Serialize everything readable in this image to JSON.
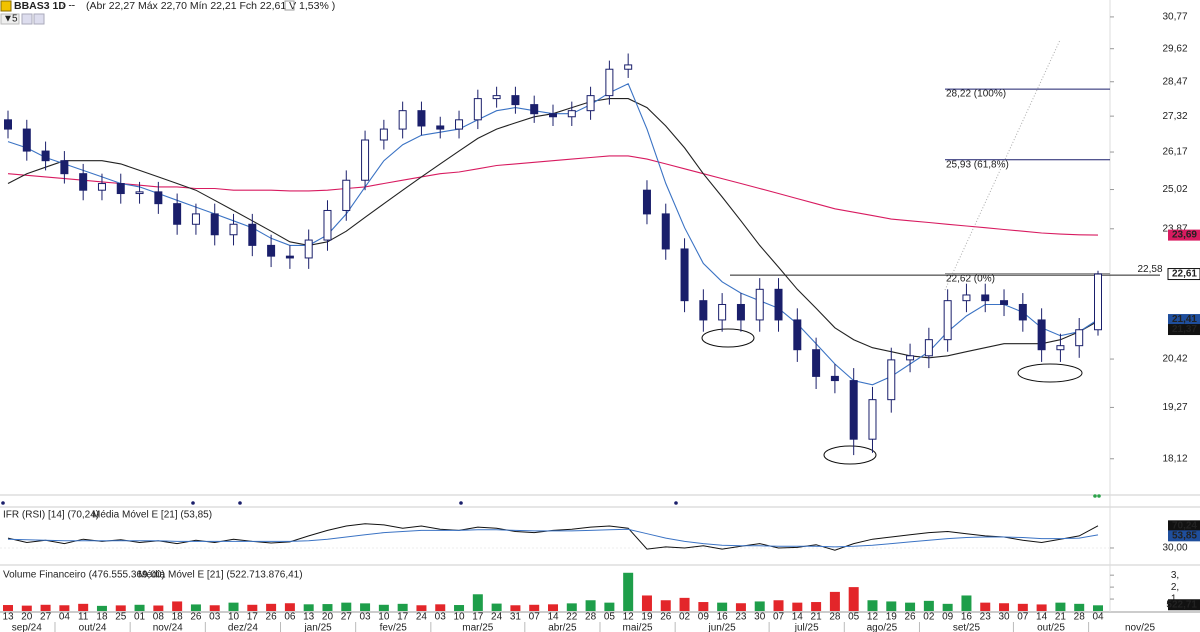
{
  "header": {
    "title": "BBAS3 1D",
    "quote": "(Abr 22,27 Máx 22,70 Mín 22,21 Fch 22,61 V 1,53% )",
    "interval": "5"
  },
  "chart_data": [
    {
      "type": "candlestick",
      "x": [
        "13",
        "20",
        "27",
        "04",
        "11",
        "18",
        "25",
        "01",
        "08",
        "18",
        "26",
        "03",
        "10",
        "17",
        "26",
        "06",
        "13",
        "20",
        "27",
        "03",
        "10",
        "17",
        "24",
        "03",
        "10",
        "17",
        "24",
        "31",
        "07",
        "14",
        "22",
        "28",
        "05",
        "12",
        "19",
        "26",
        "02",
        "09",
        "16",
        "23",
        "30",
        "07",
        "14",
        "21",
        "28",
        "05",
        "12",
        "19",
        "26",
        "02",
        "09",
        "16",
        "23",
        "30",
        "07",
        "14",
        "21",
        "28",
        "04"
      ],
      "months": [
        "sep/24",
        "out/24",
        "nov/24",
        "dez/24",
        "jan/25",
        "fev/25",
        "mar/25",
        "abr/25",
        "mai/25",
        "jun/25",
        "jul/25",
        "ago/25",
        "set/25",
        "out/25",
        "nov/25"
      ],
      "open": [
        27.2,
        26.9,
        26.2,
        25.9,
        25.5,
        25.0,
        25.2,
        24.9,
        24.95,
        24.6,
        24.0,
        24.3,
        23.7,
        24.0,
        23.4,
        23.1,
        23.05,
        23.55,
        24.4,
        25.3,
        26.55,
        26.9,
        27.5,
        27.0,
        26.9,
        27.2,
        27.9,
        28.0,
        27.7,
        27.4,
        27.3,
        27.5,
        28.0,
        28.9,
        25.0,
        24.3,
        23.3,
        21.9,
        21.4,
        21.8,
        21.4,
        22.2,
        21.4,
        20.65,
        20.0,
        19.9,
        18.55,
        19.45,
        20.4,
        20.5,
        20.9,
        21.9,
        22.05,
        21.9,
        21.8,
        21.4,
        20.65,
        20.75,
        21.15
      ],
      "high": [
        27.5,
        27.2,
        26.5,
        26.2,
        25.8,
        25.5,
        25.5,
        25.25,
        25.25,
        24.9,
        24.6,
        24.6,
        24.3,
        24.3,
        23.7,
        23.4,
        23.85,
        24.7,
        25.6,
        26.85,
        27.2,
        27.8,
        27.8,
        27.3,
        27.5,
        28.2,
        28.3,
        28.3,
        28.0,
        27.7,
        27.8,
        28.3,
        29.2,
        29.45,
        25.3,
        24.6,
        23.6,
        22.2,
        22.1,
        22.1,
        22.5,
        22.5,
        21.7,
        20.95,
        20.3,
        20.2,
        19.75,
        20.7,
        20.8,
        21.2,
        22.2,
        22.35,
        22.35,
        22.2,
        22.1,
        21.7,
        21.05,
        21.45,
        22.7
      ],
      "low": [
        26.6,
        25.9,
        25.6,
        25.2,
        24.7,
        24.7,
        24.6,
        24.6,
        24.3,
        23.7,
        23.7,
        23.4,
        23.4,
        23.1,
        22.8,
        22.75,
        22.75,
        23.25,
        24.1,
        25.0,
        26.25,
        26.6,
        26.7,
        26.6,
        26.6,
        26.9,
        27.6,
        27.4,
        27.1,
        27.0,
        27.0,
        27.2,
        27.7,
        28.6,
        24.0,
        23.0,
        21.6,
        21.1,
        21.1,
        21.1,
        21.1,
        21.1,
        20.35,
        19.7,
        19.6,
        18.2,
        18.25,
        19.15,
        20.1,
        20.2,
        20.6,
        21.6,
        21.6,
        21.5,
        21.1,
        20.35,
        20.35,
        20.45,
        21.0
      ],
      "close": [
        26.9,
        26.2,
        25.9,
        25.5,
        25.0,
        25.2,
        24.9,
        24.95,
        24.6,
        24.0,
        24.3,
        23.7,
        24.0,
        23.4,
        23.1,
        23.05,
        23.55,
        24.4,
        25.3,
        26.55,
        26.9,
        27.5,
        27.0,
        26.9,
        27.2,
        27.9,
        28.0,
        27.7,
        27.4,
        27.3,
        27.5,
        28.0,
        28.9,
        29.05,
        24.3,
        23.3,
        21.9,
        21.4,
        21.8,
        21.4,
        22.2,
        21.4,
        20.65,
        20.0,
        19.9,
        18.55,
        19.45,
        20.4,
        20.5,
        20.9,
        21.9,
        22.05,
        21.9,
        21.8,
        21.4,
        20.65,
        20.75,
        21.15,
        22.61
      ],
      "up_color": "#ffffff",
      "down_color": "#1a1f6b",
      "series": [
        {
          "color": "#d81b60",
          "values": [
            25.5,
            25.45,
            25.4,
            25.35,
            25.3,
            25.25,
            25.2,
            25.15,
            25.1,
            25.1,
            25.05,
            25.05,
            25.0,
            25.0,
            25.0,
            24.98,
            24.98,
            25.0,
            25.05,
            25.1,
            25.2,
            25.3,
            25.4,
            25.5,
            25.55,
            25.65,
            25.75,
            25.8,
            25.85,
            25.9,
            25.95,
            26.0,
            26.05,
            26.05,
            25.95,
            25.8,
            25.65,
            25.5,
            25.35,
            25.2,
            25.05,
            24.9,
            24.75,
            24.6,
            24.45,
            24.35,
            24.25,
            24.15,
            24.1,
            24.05,
            24.0,
            23.95,
            23.9,
            23.85,
            23.8,
            23.75,
            23.72,
            23.7,
            23.69
          ]
        },
        {
          "color": "#222222",
          "values": [
            25.2,
            25.5,
            25.7,
            25.9,
            25.9,
            25.9,
            25.8,
            25.6,
            25.4,
            25.2,
            25.0,
            24.7,
            24.4,
            24.1,
            23.8,
            23.5,
            23.4,
            23.5,
            23.8,
            24.2,
            24.6,
            25.0,
            25.4,
            25.8,
            26.2,
            26.6,
            26.9,
            27.1,
            27.3,
            27.4,
            27.6,
            27.8,
            27.9,
            27.9,
            27.6,
            27.0,
            26.3,
            25.5,
            24.8,
            24.1,
            23.4,
            22.8,
            22.2,
            21.7,
            21.2,
            20.9,
            20.7,
            20.6,
            20.5,
            20.45,
            20.5,
            20.6,
            20.7,
            20.8,
            20.8,
            20.8,
            20.9,
            21.1,
            21.37
          ]
        },
        {
          "color": "#3b73c4",
          "values": [
            26.5,
            26.3,
            26.0,
            25.8,
            25.6,
            25.4,
            25.2,
            25.1,
            24.9,
            24.7,
            24.5,
            24.3,
            24.1,
            23.9,
            23.6,
            23.4,
            23.4,
            23.7,
            24.3,
            25.1,
            25.9,
            26.4,
            26.7,
            26.8,
            26.9,
            27.2,
            27.5,
            27.6,
            27.5,
            27.4,
            27.4,
            27.7,
            28.1,
            28.4,
            26.9,
            25.2,
            23.9,
            22.9,
            22.4,
            22.1,
            21.9,
            21.7,
            21.3,
            20.8,
            20.3,
            19.9,
            19.8,
            20.0,
            20.3,
            20.6,
            21.1,
            21.5,
            21.8,
            21.8,
            21.6,
            21.2,
            21.0,
            21.1,
            21.41
          ]
        }
      ],
      "ylim": [
        17.35,
        31.4
      ],
      "log_scale": true,
      "yticks": [
        {
          "value": 30.77,
          "label": "30,77"
        },
        {
          "value": 29.62,
          "label": "29,62"
        },
        {
          "value": 28.47,
          "label": "28,47"
        },
        {
          "value": 27.32,
          "label": "27,32"
        },
        {
          "value": 26.17,
          "label": "26,17"
        },
        {
          "value": 25.02,
          "label": "25,02"
        },
        {
          "value": 23.87,
          "label": "23,87"
        },
        {
          "value": 20.42,
          "label": "20,42"
        },
        {
          "value": 19.27,
          "label": "19,27"
        },
        {
          "value": 18.12,
          "label": "18,12"
        }
      ],
      "levels": [
        {
          "value": 28.22,
          "label": "28,22 (100%)"
        },
        {
          "value": 25.93,
          "label": "25,93 (61,8%)"
        },
        {
          "value": 22.62,
          "label": "22,62 (0%)"
        }
      ],
      "hline": {
        "value": 22.58,
        "label": "22,58"
      },
      "tags": [
        {
          "value": 23.69,
          "label": "23,69",
          "color": "#d81b60"
        },
        {
          "value": 22.61,
          "label": "22,61",
          "color": "#ffffff"
        },
        {
          "value": 21.41,
          "label": "21,41",
          "color": "#1f4e9c"
        },
        {
          "value": 21.37,
          "label": "21,37",
          "color": "#111111"
        }
      ]
    },
    {
      "type": "line",
      "title": "IFR (RSI) [14] (70,24)",
      "subtitle": "Média Móvel E [21] (53,85)",
      "series": [
        {
          "color": "#111111",
          "values": [
            48,
            40,
            44,
            38,
            46,
            42,
            45,
            40,
            43,
            38,
            44,
            40,
            46,
            42,
            39,
            41,
            52,
            62,
            70,
            74,
            72,
            66,
            70,
            64,
            62,
            68,
            66,
            60,
            58,
            62,
            64,
            68,
            70,
            66,
            28,
            32,
            30,
            34,
            28,
            33,
            38,
            30,
            31,
            36,
            26,
            38,
            46,
            50,
            54,
            58,
            60,
            56,
            52,
            50,
            44,
            40,
            46,
            52,
            70.24
          ]
        },
        {
          "color": "#3b73c4",
          "values": [
            46,
            45,
            44,
            43,
            43,
            43,
            43,
            43,
            43,
            42,
            42,
            42,
            42,
            42,
            42,
            42,
            43,
            46,
            50,
            54,
            58,
            60,
            62,
            62,
            62,
            63,
            63,
            62,
            61,
            61,
            61,
            62,
            63,
            64,
            56,
            48,
            42,
            38,
            35,
            34,
            34,
            33,
            33,
            33,
            32,
            33,
            35,
            38,
            41,
            44,
            47,
            49,
            50,
            50,
            49,
            47,
            47,
            48,
            53.85
          ]
        }
      ],
      "ylim": [
        4.5,
        104.5
      ],
      "yticks": [
        {
          "value": 30,
          "label": "30,00"
        }
      ],
      "tags": [
        {
          "value": 70.24,
          "label": "70,24",
          "color": "#111111"
        },
        {
          "value": 53.85,
          "label": "53,85",
          "color": "#1f4e9c"
        }
      ]
    },
    {
      "type": "bar",
      "title": "Volume Financeiro (476.555.369,00)",
      "subtitle": "Média Móvel E [21] (522.713.876,41)",
      "values": [
        500000000,
        450000000,
        520000000,
        480000000,
        600000000,
        430000000,
        470000000,
        520000000,
        460000000,
        800000000,
        550000000,
        480000000,
        700000000,
        520000000,
        600000000,
        650000000,
        560000000,
        580000000,
        700000000,
        640000000,
        520000000,
        600000000,
        480000000,
        560000000,
        500000000,
        1400000000,
        620000000,
        480000000,
        520000000,
        560000000,
        640000000,
        900000000,
        700000000,
        3200000000,
        1300000000,
        900000000,
        1100000000,
        750000000,
        700000000,
        650000000,
        800000000,
        900000000,
        700000000,
        750000000,
        1600000000,
        2000000000,
        900000000,
        800000000,
        700000000,
        850000000,
        600000000,
        1300000000,
        700000000,
        650000000,
        600000000,
        550000000,
        700000000,
        600000000,
        476555369
      ],
      "up_color": "#1e9e4a",
      "down_color": "#e3262a",
      "ylim": [
        0,
        3600000000
      ],
      "yticks": [
        {
          "value": 1000000000,
          "label": "1,"
        },
        {
          "value": 2000000000,
          "label": "2,"
        },
        {
          "value": 3000000000,
          "label": "3,"
        }
      ],
      "tags": [
        {
          "value": 522713876.41,
          "label": "522,71",
          "color": "#111111"
        }
      ]
    }
  ]
}
